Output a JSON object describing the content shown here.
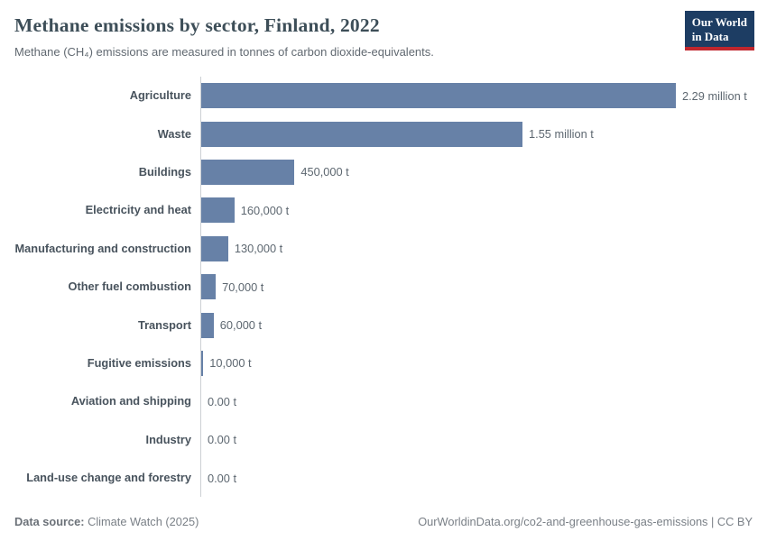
{
  "logo": {
    "line1": "Our World",
    "line2": "in Data"
  },
  "header": {
    "title": "Methane emissions by sector, Finland, 2022",
    "subtitle": "Methane (CH₄) emissions are measured in tonnes of carbon dioxide-equivalents."
  },
  "chart_data": {
    "type": "bar",
    "orientation": "horizontal",
    "title": "Methane emissions by sector, Finland, 2022",
    "unit": "tonnes of carbon dioxide-equivalents",
    "bar_color": "#6781a7",
    "axis_line_color": "#ccd0d4",
    "xlim": [
      0,
      2290000
    ],
    "grid": false,
    "legend": false,
    "categories": [
      "Agriculture",
      "Waste",
      "Buildings",
      "Electricity and heat",
      "Manufacturing and construction",
      "Other fuel combustion",
      "Transport",
      "Fugitive emissions",
      "Aviation and shipping",
      "Industry",
      "Land-use change and forestry"
    ],
    "values": [
      2290000,
      1550000,
      450000,
      160000,
      130000,
      70000,
      60000,
      10000,
      0,
      0,
      0
    ],
    "value_labels": [
      "2.29 million t",
      "1.55 million t",
      "450,000 t",
      "160,000 t",
      "130,000 t",
      "70,000 t",
      "60,000 t",
      "10,000 t",
      "0.00 t",
      "0.00 t",
      "0.00 t"
    ]
  },
  "footer": {
    "source_label": "Data source:",
    "source_value": "Climate Watch (2025)",
    "right_text": "OurWorldinData.org/co2-and-greenhouse-gas-emissions | CC BY"
  }
}
